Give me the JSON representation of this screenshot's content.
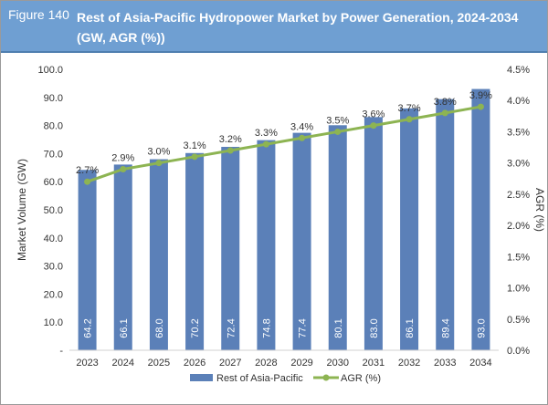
{
  "header": {
    "figure_label": "Figure 140",
    "title": "Rest of Asia-Pacific Hydropower Market by Power Generation, 2024-2034 (GW, AGR (%))"
  },
  "colors": {
    "header": "#6f9fd2",
    "bar": "#5b80b8",
    "line": "#8db452"
  },
  "chart_data": {
    "type": "bar",
    "title": "Rest of Asia-Pacific Hydropower Market by Power Generation, 2024-2034 (GW, AGR (%))",
    "categories": [
      "2023",
      "2024",
      "2025",
      "2026",
      "2027",
      "2028",
      "2029",
      "2030",
      "2031",
      "2032",
      "2033",
      "2034"
    ],
    "series": [
      {
        "name": "Rest of Asia-Pacific",
        "type": "bar",
        "axis": "left",
        "values": [
          64.2,
          66.1,
          68.0,
          70.2,
          72.4,
          74.8,
          77.4,
          80.1,
          83.0,
          86.1,
          89.4,
          93.0
        ],
        "labels": [
          "64.2",
          "66.1",
          "68.0",
          "70.2",
          "72.4",
          "74.8",
          "77.4",
          "80.1",
          "83.0",
          "86.1",
          "89.4",
          "93.0"
        ]
      },
      {
        "name": "AGR (%)",
        "type": "line",
        "axis": "right",
        "values": [
          2.7,
          2.9,
          3.0,
          3.1,
          3.2,
          3.3,
          3.4,
          3.5,
          3.6,
          3.7,
          3.8,
          3.9
        ],
        "labels": [
          "2.7%",
          "2.9%",
          "3.0%",
          "3.1%",
          "3.2%",
          "3.3%",
          "3.4%",
          "3.5%",
          "3.6%",
          "3.7%",
          "3.8%",
          "3.9%"
        ]
      }
    ],
    "ylabel": "Market Volume (GW)",
    "y2label": "AGR (%)",
    "ylim": [
      0,
      100
    ],
    "y2lim": [
      0,
      4.5
    ],
    "yticks": [
      "-",
      "10.0",
      "20.0",
      "30.0",
      "40.0",
      "50.0",
      "60.0",
      "70.0",
      "80.0",
      "90.0",
      "100.0"
    ],
    "y2ticks": [
      "0.0%",
      "0.5%",
      "1.0%",
      "1.5%",
      "2.0%",
      "2.5%",
      "3.0%",
      "3.5%",
      "4.0%",
      "4.5%"
    ],
    "grid": false,
    "legend": "bottom"
  }
}
